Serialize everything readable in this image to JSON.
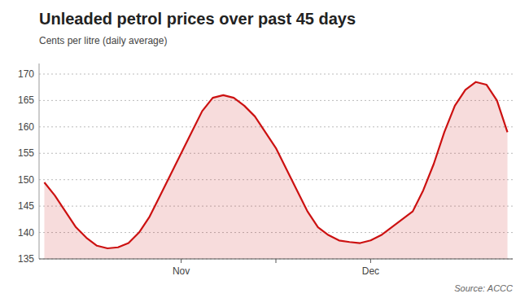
{
  "chart_data": {
    "type": "area",
    "title": "Unleaded petrol prices over past 45 days",
    "subtitle": "Cents per litre (daily average)",
    "source": "Source: ACCC",
    "x": [
      0,
      1,
      2,
      3,
      4,
      5,
      6,
      7,
      8,
      9,
      10,
      11,
      12,
      13,
      14,
      15,
      16,
      17,
      18,
      19,
      20,
      21,
      22,
      23,
      24,
      25,
      26,
      27,
      28,
      29,
      30,
      31,
      32,
      33,
      34,
      35,
      36,
      37,
      38,
      39,
      40,
      41,
      42,
      43,
      44
    ],
    "values": [
      149.5,
      147,
      144,
      141,
      139,
      137.5,
      137,
      137.2,
      138,
      140,
      143,
      147,
      151,
      155,
      159,
      163,
      165.5,
      166,
      165.5,
      164,
      162,
      159,
      156,
      152,
      148,
      144,
      141,
      139.5,
      138.5,
      138.2,
      138,
      138.5,
      139.5,
      141,
      142.5,
      144,
      148,
      153,
      159,
      164,
      167,
      168.5,
      168,
      165,
      159
    ],
    "color": "#cc1111",
    "xlim": [
      -0.5,
      44.5
    ],
    "xticks": [
      {
        "value": 13,
        "label": "Nov"
      },
      {
        "value": 22,
        "label": null
      },
      {
        "value": 31,
        "label": "Dec"
      }
    ],
    "ylim": [
      135,
      172
    ],
    "yticks": [
      135,
      140,
      145,
      150,
      155,
      160,
      165,
      170
    ],
    "grid": true
  }
}
